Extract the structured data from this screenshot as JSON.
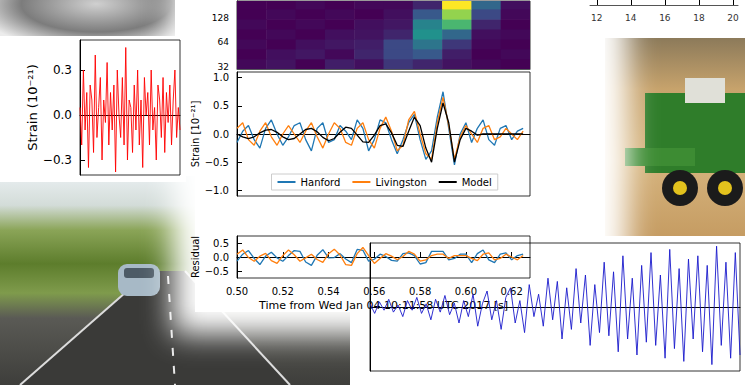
{
  "chart_data": [
    {
      "type": "line",
      "ylabel": "Strain (10⁻²¹)",
      "color": "#ff0000",
      "tick_labels": "y",
      "values": [
        0.05,
        -0.2,
        0.3,
        -0.1,
        0.15,
        -0.35,
        0.2,
        0.1,
        -0.25,
        0.4,
        -0.15,
        0.05,
        0.25,
        -0.3,
        0.1,
        -0.05,
        0.35,
        -0.2,
        0.15,
        -0.1,
        0.2,
        -0.38,
        0.3,
        0.0,
        -0.15,
        0.25,
        -0.2,
        0.45,
        -0.3,
        0.1,
        0.05,
        -0.25,
        0.2,
        -0.1,
        0.3,
        -0.2,
        0.1,
        -0.35,
        0.25,
        0.0,
        0.15,
        -0.2,
        0.3,
        -0.1,
        0.05,
        -0.3,
        0.2,
        0.1,
        -0.15,
        0.25,
        -0.25,
        0.15,
        -0.05,
        0.2,
        -0.2,
        0.1,
        0.3,
        -0.15,
        0.05,
        -0.1
      ],
      "ylim": [
        -0.4,
        0.5
      ],
      "yticks": [
        {
          "value": -0.3,
          "label": "−0.3"
        },
        {
          "value": 0,
          "label": "0.0"
        },
        0.3
      ]
    },
    {
      "type": "spectrogram",
      "log": "y",
      "tick_labels": "y",
      "x_edges": [
        0.5,
        0.5125,
        0.525,
        0.5375,
        0.55,
        0.5625,
        0.575,
        0.5875,
        0.6,
        0.6125,
        0.625
      ],
      "y_edges": [
        30,
        40,
        53,
        70,
        93,
        123,
        164,
        205
      ],
      "cells": [
        [
          0.12,
          0.15,
          0.1,
          0.18,
          0.14,
          0.25,
          0.2,
          0.15,
          0.12,
          0.1
        ],
        [
          0.1,
          0.14,
          0.16,
          0.12,
          0.2,
          0.3,
          0.35,
          0.18,
          0.1,
          0.12
        ],
        [
          0.12,
          0.1,
          0.14,
          0.16,
          0.18,
          0.3,
          0.45,
          0.25,
          0.12,
          0.1
        ],
        [
          0.1,
          0.12,
          0.1,
          0.14,
          0.15,
          0.2,
          0.55,
          0.4,
          0.14,
          0.12
        ],
        [
          0.12,
          0.1,
          0.12,
          0.1,
          0.14,
          0.16,
          0.5,
          0.7,
          0.2,
          0.1
        ],
        [
          0.1,
          0.12,
          0.1,
          0.12,
          0.1,
          0.14,
          0.35,
          0.85,
          0.3,
          0.12
        ],
        [
          0.1,
          0.1,
          0.12,
          0.1,
          0.12,
          0.12,
          0.2,
          1.0,
          0.4,
          0.14
        ]
      ],
      "ylim": [
        30,
        205
      ],
      "yticks": [
        32,
        64,
        128
      ]
    },
    {
      "type": "line",
      "ylabel": "Strain [10⁻²¹]",
      "legend": "bottom",
      "tick_labels": "y",
      "x": [
        0.5,
        0.5025,
        0.505,
        0.5075,
        0.51,
        0.5125,
        0.515,
        0.5175,
        0.52,
        0.5225,
        0.525,
        0.5275,
        0.53,
        0.5325,
        0.535,
        0.5375,
        0.54,
        0.5425,
        0.545,
        0.5475,
        0.55,
        0.5525,
        0.555,
        0.5575,
        0.56,
        0.5625,
        0.565,
        0.5675,
        0.57,
        0.5725,
        0.575,
        0.5775,
        0.58,
        0.5825,
        0.585,
        0.5875,
        0.59,
        0.5925,
        0.595,
        0.5975,
        0.6,
        0.6025,
        0.605,
        0.6075,
        0.61,
        0.6125,
        0.615,
        0.6175,
        0.62,
        0.6225,
        0.625
      ],
      "series": [
        {
          "name": "Hanford",
          "color": "#1f77b4",
          "values": [
            -0.15,
            0.05,
            0.15,
            -0.1,
            -0.25,
            0.1,
            0.25,
            0,
            -0.2,
            -0.05,
            0.15,
            0.2,
            -0.1,
            -0.3,
            0.1,
            0.2,
            -0.15,
            -0.1,
            0.15,
            0.05,
            -0.1,
            0.25,
            0.1,
            -0.3,
            -0.1,
            0.25,
            0.2,
            -0.1,
            -0.35,
            -0.1,
            0.2,
            0.35,
            -0.1,
            -0.45,
            -0.3,
            0.3,
            0.75,
            0.1,
            -0.55,
            0,
            0.2,
            -0.15,
            0.1,
            0.25,
            -0.1,
            -0.2,
            0.1,
            0.15,
            -0.1,
            0.05,
            0.1
          ]
        },
        {
          "name": "Livingston",
          "color": "#ff7f0e",
          "values": [
            0.1,
            0.2,
            -0.1,
            -0.2,
            0.05,
            0.2,
            -0.05,
            -0.2,
            0,
            0.15,
            0,
            -0.15,
            0.05,
            0.2,
            -0.05,
            -0.25,
            0,
            0.2,
            0.1,
            -0.15,
            -0.2,
            0.1,
            0.2,
            -0.1,
            -0.25,
            0.1,
            0.3,
            0.05,
            -0.3,
            -0.2,
            0.25,
            0.4,
            0,
            -0.35,
            -0.45,
            0.2,
            0.65,
            0.15,
            -0.45,
            -0.05,
            0.15,
            0,
            -0.15,
            0.1,
            0.15,
            -0.1,
            -0.05,
            0.1,
            0,
            -0.1,
            0.05
          ]
        },
        {
          "name": "Model",
          "color": "#000000",
          "values": [
            0,
            -0.05,
            -0.08,
            -0.05,
            0.02,
            0.07,
            0.08,
            0.03,
            -0.05,
            -0.1,
            -0.08,
            0,
            0.08,
            0.1,
            0.04,
            -0.06,
            -0.12,
            -0.08,
            0.03,
            0.12,
            0.1,
            -0.02,
            -0.14,
            -0.15,
            -0.02,
            0.15,
            0.18,
            0.02,
            -0.2,
            -0.22,
            0.05,
            0.3,
            0.15,
            -0.25,
            -0.5,
            0.1,
            0.55,
            0.2,
            -0.5,
            -0.1,
            0.1,
            0.05,
            -0.02,
            0,
            0,
            0,
            0,
            0,
            0,
            0,
            0
          ]
        }
      ],
      "xlim": [
        0.5,
        0.628
      ],
      "ylim": [
        -1.1,
        1.1
      ],
      "yticks": [
        {
          "value": -1,
          "label": "−1.0"
        },
        {
          "value": -0.5,
          "label": "−0.5"
        },
        {
          "value": 0,
          "label": "0.0"
        },
        0.5,
        {
          "value": 1,
          "label": "1.0"
        }
      ]
    },
    {
      "type": "line",
      "ylabel": "Residual",
      "xlabel": "Time from Wed Jan 04 10:11:58 UTC 2017 [s]",
      "x": [
        0.5,
        0.5025,
        0.505,
        0.5075,
        0.51,
        0.5125,
        0.515,
        0.5175,
        0.52,
        0.5225,
        0.525,
        0.5275,
        0.53,
        0.5325,
        0.535,
        0.5375,
        0.54,
        0.5425,
        0.545,
        0.5475,
        0.55,
        0.5525,
        0.555,
        0.5575,
        0.56,
        0.5625,
        0.565,
        0.5675,
        0.57,
        0.5725,
        0.575,
        0.5775,
        0.58,
        0.5825,
        0.585,
        0.5875,
        0.59,
        0.5925,
        0.595,
        0.5975,
        0.6,
        0.6025,
        0.605,
        0.6075,
        0.61,
        0.6125,
        0.615,
        0.6175,
        0.62,
        0.6225,
        0.625
      ],
      "series": [
        {
          "color": "#1f77b4",
          "values": [
            -0.15,
            0.1,
            0.23,
            -0.05,
            -0.27,
            0.03,
            0.17,
            -0.03,
            -0.15,
            0.05,
            0.23,
            0.2,
            -0.18,
            -0.3,
            0.06,
            0.26,
            -0.03,
            -0.02,
            0.12,
            -0.07,
            -0.2,
            0.27,
            0.24,
            -0.15,
            -0.08,
            0.1,
            0.02,
            -0.12,
            -0.15,
            0.12,
            0.15,
            0.05,
            -0.25,
            -0.2,
            0.2,
            0.2,
            0.2,
            -0.1,
            -0.05,
            0.1,
            0.1,
            -0.2,
            0.12,
            0.25,
            -0.1,
            -0.2,
            0.1,
            0.15,
            -0.1,
            0.05,
            0.1
          ]
        },
        {
          "color": "#ff7f0e",
          "values": [
            0.1,
            0.25,
            -0.02,
            -0.15,
            0.03,
            0.13,
            -0.13,
            -0.23,
            0.05,
            0.25,
            0.08,
            -0.15,
            -0.03,
            0.1,
            -0.09,
            -0.19,
            0.12,
            0.28,
            0.07,
            -0.27,
            -0.3,
            0.12,
            0.34,
            0.05,
            -0.23,
            -0.05,
            0.12,
            0.03,
            -0.1,
            0.02,
            0.2,
            0.1,
            -0.15,
            -0.1,
            0.05,
            0.1,
            0.1,
            -0.05,
            0.05,
            0.05,
            0.05,
            -0.05,
            -0.13,
            0.1,
            0.15,
            -0.1,
            -0.05,
            0.1,
            0,
            -0.1,
            0.05
          ]
        }
      ],
      "xlim": [
        0.5,
        0.628
      ],
      "ylim": [
        -0.75,
        0.75
      ],
      "xticks": [
        {
          "value": 0.5,
          "label": "0.50"
        },
        {
          "value": 0.52,
          "label": "0.52"
        },
        {
          "value": 0.54,
          "label": "0.54"
        },
        {
          "value": 0.56,
          "label": "0.56"
        },
        {
          "value": 0.58,
          "label": "0.58"
        },
        {
          "value": 0.6,
          "label": "0.60"
        },
        {
          "value": 0.62,
          "label": "0.62"
        }
      ],
      "yticks": [
        {
          "value": -0.5,
          "label": "−0.5"
        },
        {
          "value": 0,
          "label": "0.0"
        },
        0.5
      ]
    },
    {
      "type": "line",
      "color": "#1a1acc",
      "tick_labels": false,
      "values": [
        0.05,
        -0.1,
        0.08,
        -0.05,
        0.12,
        -0.08,
        0.03,
        -0.15,
        0.1,
        -0.05,
        0.15,
        -0.1,
        0.05,
        -0.2,
        0.12,
        -0.08,
        0.18,
        -0.12,
        0.06,
        -0.25,
        0.1,
        -0.15,
        0.2,
        -0.3,
        0.05,
        0.25,
        -0.2,
        0.1,
        -0.35,
        0.15,
        0.3,
        -0.25,
        0.1,
        -0.4,
        0.35,
        -0.15,
        0.2,
        -0.3,
        0.45,
        -0.2,
        0.4,
        -0.5,
        0.3,
        -0.35,
        0.6,
        -0.25,
        0.5,
        -0.6,
        0.35,
        -0.4,
        0.7,
        -0.45,
        0.55,
        -0.7,
        0.8,
        -0.5,
        0.45,
        -0.75,
        0.65,
        -0.55,
        0.85,
        -0.6,
        0.5,
        -0.8,
        0.9,
        -0.65,
        0.6,
        -0.85,
        0.75,
        -0.5,
        0.8,
        -0.7,
        0.65,
        -0.9,
        0.95,
        -0.6,
        0.7,
        -0.8,
        0.85,
        -0.75
      ],
      "ylim": [
        -1,
        1
      ]
    },
    {
      "type": "axis",
      "tick_labels": "x",
      "xlim": [
        11.6,
        20.3
      ],
      "xticks": [
        12,
        14,
        16,
        18,
        20
      ]
    }
  ]
}
